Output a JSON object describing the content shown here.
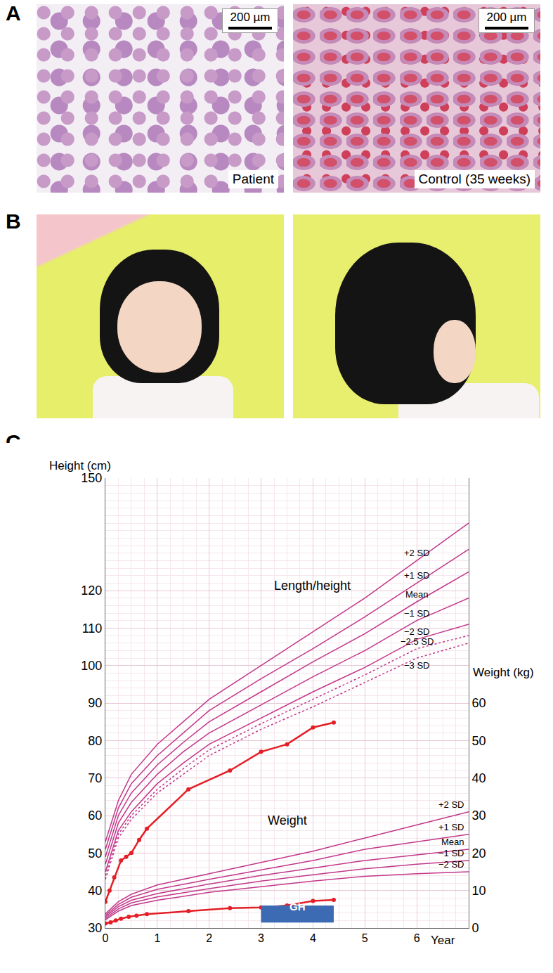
{
  "panels": {
    "A": {
      "label": "A",
      "images": [
        {
          "caption": "Patient",
          "scale_bar": "200 µm"
        },
        {
          "caption": "Control (35 weeks)",
          "scale_bar": "200 µm"
        }
      ]
    },
    "B": {
      "label": "B"
    },
    "C": {
      "label": "C"
    }
  },
  "chart_data": {
    "type": "line",
    "x_title": "Year",
    "y_title": "Height (cm)",
    "y2_title": "Weight (kg)",
    "annotations": [
      "Length/height",
      "Weight"
    ],
    "xlim": [
      0,
      7
    ],
    "xticks": [
      0,
      1,
      2,
      3,
      4,
      5,
      6
    ],
    "ylim": [
      30,
      150
    ],
    "yticks": [
      30,
      40,
      50,
      60,
      70,
      80,
      90,
      100,
      110,
      120,
      150
    ],
    "y2lim": [
      0,
      120
    ],
    "y2ticks": [
      0,
      10,
      20,
      30,
      40,
      50,
      60
    ],
    "grid": true,
    "series": [
      {
        "name": "+2 SD",
        "axis": "y",
        "color": "#c2378a",
        "line_style": "solid",
        "x": [
          0,
          0.25,
          0.5,
          1,
          1.5,
          2,
          3,
          4,
          5,
          6,
          7
        ],
        "values": [
          53,
          64,
          71,
          79,
          85,
          91,
          100,
          109,
          118,
          128,
          138
        ]
      },
      {
        "name": "+1 SD",
        "axis": "y",
        "color": "#c2378a",
        "line_style": "solid",
        "x": [
          0,
          0.25,
          0.5,
          1,
          1.5,
          2,
          3,
          4,
          5,
          6,
          7
        ],
        "values": [
          51,
          62,
          68.5,
          76,
          82,
          88,
          96.5,
          104.5,
          113,
          122,
          131
        ]
      },
      {
        "name": "Mean",
        "axis": "y",
        "color": "#c2378a",
        "line_style": "solid",
        "x": [
          0,
          0.25,
          0.5,
          1,
          1.5,
          2,
          3,
          4,
          5,
          6,
          7
        ],
        "values": [
          49,
          60,
          66,
          73.5,
          79.5,
          85,
          93,
          101,
          108.5,
          117,
          125
        ]
      },
      {
        "name": "−1 SD",
        "axis": "y",
        "color": "#c2378a",
        "line_style": "solid",
        "x": [
          0,
          0.25,
          0.5,
          1,
          1.5,
          2,
          3,
          4,
          5,
          6,
          7
        ],
        "values": [
          47,
          58,
          63.5,
          71,
          77,
          82,
          89.5,
          97,
          104,
          112,
          118
        ]
      },
      {
        "name": "−2 SD",
        "axis": "y",
        "color": "#c2378a",
        "line_style": "solid",
        "x": [
          0,
          0.25,
          0.5,
          1,
          1.5,
          2,
          3,
          4,
          5,
          6,
          7
        ],
        "values": [
          45,
          56,
          61,
          68.5,
          74,
          79,
          86,
          93,
          99.5,
          107,
          111
        ]
      },
      {
        "name": "−2.5 SD",
        "axis": "y",
        "color": "#c2378a",
        "line_style": "dotted",
        "x": [
          0,
          0.25,
          0.5,
          1,
          1.5,
          2,
          3,
          4,
          5,
          6,
          7
        ],
        "values": [
          44,
          55,
          60,
          67,
          72.5,
          77.5,
          84.5,
          91,
          97.5,
          104.5,
          108
        ]
      },
      {
        "name": "−3 SD",
        "axis": "y",
        "color": "#c2378a",
        "line_style": "dotted",
        "x": [
          0,
          0.25,
          0.5,
          1,
          1.5,
          2,
          3,
          4,
          5,
          6,
          7
        ],
        "values": [
          43,
          54,
          59,
          66,
          71,
          76,
          83,
          89,
          95.5,
          102,
          106
        ]
      },
      {
        "name": "+2 SD",
        "axis": "y2",
        "color": "#c2378a",
        "line_style": "solid",
        "x": [
          0,
          0.25,
          0.5,
          1,
          2,
          3,
          4,
          5,
          6,
          7
        ],
        "values": [
          3.8,
          7,
          9,
          11.5,
          14.5,
          17.5,
          20.5,
          24,
          27.5,
          31
        ]
      },
      {
        "name": "+1 SD",
        "axis": "y2",
        "color": "#c2378a",
        "line_style": "solid",
        "x": [
          0,
          0.25,
          0.5,
          1,
          2,
          3,
          4,
          5,
          6,
          7
        ],
        "values": [
          3.4,
          6.3,
          8.2,
          10.3,
          13,
          15.5,
          18,
          21,
          23,
          25
        ]
      },
      {
        "name": "Mean",
        "axis": "y2",
        "color": "#c2378a",
        "line_style": "solid",
        "x": [
          0,
          0.25,
          0.5,
          1,
          2,
          3,
          4,
          5,
          6,
          7
        ],
        "values": [
          3.0,
          5.7,
          7.4,
          9.2,
          11.7,
          14,
          16,
          18,
          19.5,
          21
        ]
      },
      {
        "name": "−1 SD",
        "axis": "y2",
        "color": "#c2378a",
        "line_style": "solid",
        "x": [
          0,
          0.25,
          0.5,
          1,
          2,
          3,
          4,
          5,
          6,
          7
        ],
        "values": [
          2.6,
          5.1,
          6.7,
          8.3,
          10.5,
          12.5,
          14.2,
          15.8,
          17,
          18
        ]
      },
      {
        "name": "−2 SD",
        "axis": "y2",
        "color": "#c2378a",
        "line_style": "solid",
        "x": [
          0,
          0.25,
          0.5,
          1,
          2,
          3,
          4,
          5,
          6,
          7
        ],
        "values": [
          2.2,
          4.5,
          6.0,
          7.4,
          9.5,
          11,
          12.5,
          13.8,
          14.5,
          15
        ]
      },
      {
        "axis": "y",
        "color": "#e41e26",
        "line_style": "solid",
        "marker": "circle",
        "x": [
          0,
          0.08,
          0.17,
          0.3,
          0.4,
          0.5,
          0.65,
          0.8,
          1.6,
          2.4,
          3.0,
          3.5,
          4.0,
          4.4
        ],
        "values": [
          37,
          40,
          43.5,
          48,
          49,
          50,
          53.5,
          56.5,
          67,
          72,
          77,
          79,
          83.5,
          84.8
        ]
      },
      {
        "axis": "y2",
        "color": "#e41e26",
        "line_style": "solid",
        "marker": "circle",
        "x": [
          0,
          0.1,
          0.2,
          0.3,
          0.45,
          0.6,
          0.8,
          1.6,
          2.4,
          3.0,
          3.5,
          4.0,
          4.4
        ],
        "values": [
          1.2,
          1.5,
          2.0,
          2.5,
          3.0,
          3.3,
          3.7,
          4.5,
          5.3,
          5.5,
          6.0,
          7.2,
          7.5
        ]
      }
    ],
    "bands": [
      {
        "label": "GH",
        "start": 3.0,
        "end": 4.4,
        "color": "#3d6bb3"
      }
    ]
  }
}
